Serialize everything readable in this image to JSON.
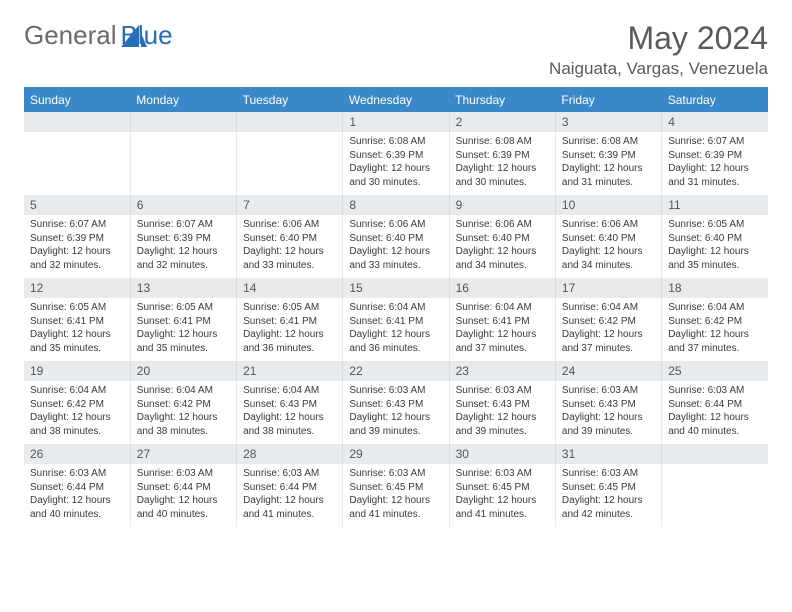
{
  "logo": {
    "part1": "General",
    "part2": "Blue"
  },
  "title": "May 2024",
  "location": "Naiguata, Vargas, Venezuela",
  "colors": {
    "header_bg": "#3a88c9",
    "header_text": "#ffffff",
    "daynum_bg": "#e8ebee",
    "daynum_text": "#555555",
    "body_text": "#3a3a3a",
    "border": "#3a88c9",
    "page_bg": "#ffffff",
    "logo_gray": "#6a6a6a",
    "logo_blue": "#2a6db8"
  },
  "typography": {
    "title_fontsize": 32,
    "location_fontsize": 17,
    "header_fontsize": 12,
    "daynum_fontsize": 12,
    "detail_fontsize": 10
  },
  "weekdays": [
    "Sunday",
    "Monday",
    "Tuesday",
    "Wednesday",
    "Thursday",
    "Friday",
    "Saturday"
  ],
  "weeks": [
    [
      null,
      null,
      null,
      {
        "n": "1",
        "sr": "6:08 AM",
        "ss": "6:39 PM",
        "dl": "12 hours and 30 minutes."
      },
      {
        "n": "2",
        "sr": "6:08 AM",
        "ss": "6:39 PM",
        "dl": "12 hours and 30 minutes."
      },
      {
        "n": "3",
        "sr": "6:08 AM",
        "ss": "6:39 PM",
        "dl": "12 hours and 31 minutes."
      },
      {
        "n": "4",
        "sr": "6:07 AM",
        "ss": "6:39 PM",
        "dl": "12 hours and 31 minutes."
      }
    ],
    [
      {
        "n": "5",
        "sr": "6:07 AM",
        "ss": "6:39 PM",
        "dl": "12 hours and 32 minutes."
      },
      {
        "n": "6",
        "sr": "6:07 AM",
        "ss": "6:39 PM",
        "dl": "12 hours and 32 minutes."
      },
      {
        "n": "7",
        "sr": "6:06 AM",
        "ss": "6:40 PM",
        "dl": "12 hours and 33 minutes."
      },
      {
        "n": "8",
        "sr": "6:06 AM",
        "ss": "6:40 PM",
        "dl": "12 hours and 33 minutes."
      },
      {
        "n": "9",
        "sr": "6:06 AM",
        "ss": "6:40 PM",
        "dl": "12 hours and 34 minutes."
      },
      {
        "n": "10",
        "sr": "6:06 AM",
        "ss": "6:40 PM",
        "dl": "12 hours and 34 minutes."
      },
      {
        "n": "11",
        "sr": "6:05 AM",
        "ss": "6:40 PM",
        "dl": "12 hours and 35 minutes."
      }
    ],
    [
      {
        "n": "12",
        "sr": "6:05 AM",
        "ss": "6:41 PM",
        "dl": "12 hours and 35 minutes."
      },
      {
        "n": "13",
        "sr": "6:05 AM",
        "ss": "6:41 PM",
        "dl": "12 hours and 35 minutes."
      },
      {
        "n": "14",
        "sr": "6:05 AM",
        "ss": "6:41 PM",
        "dl": "12 hours and 36 minutes."
      },
      {
        "n": "15",
        "sr": "6:04 AM",
        "ss": "6:41 PM",
        "dl": "12 hours and 36 minutes."
      },
      {
        "n": "16",
        "sr": "6:04 AM",
        "ss": "6:41 PM",
        "dl": "12 hours and 37 minutes."
      },
      {
        "n": "17",
        "sr": "6:04 AM",
        "ss": "6:42 PM",
        "dl": "12 hours and 37 minutes."
      },
      {
        "n": "18",
        "sr": "6:04 AM",
        "ss": "6:42 PM",
        "dl": "12 hours and 37 minutes."
      }
    ],
    [
      {
        "n": "19",
        "sr": "6:04 AM",
        "ss": "6:42 PM",
        "dl": "12 hours and 38 minutes."
      },
      {
        "n": "20",
        "sr": "6:04 AM",
        "ss": "6:42 PM",
        "dl": "12 hours and 38 minutes."
      },
      {
        "n": "21",
        "sr": "6:04 AM",
        "ss": "6:43 PM",
        "dl": "12 hours and 38 minutes."
      },
      {
        "n": "22",
        "sr": "6:03 AM",
        "ss": "6:43 PM",
        "dl": "12 hours and 39 minutes."
      },
      {
        "n": "23",
        "sr": "6:03 AM",
        "ss": "6:43 PM",
        "dl": "12 hours and 39 minutes."
      },
      {
        "n": "24",
        "sr": "6:03 AM",
        "ss": "6:43 PM",
        "dl": "12 hours and 39 minutes."
      },
      {
        "n": "25",
        "sr": "6:03 AM",
        "ss": "6:44 PM",
        "dl": "12 hours and 40 minutes."
      }
    ],
    [
      {
        "n": "26",
        "sr": "6:03 AM",
        "ss": "6:44 PM",
        "dl": "12 hours and 40 minutes."
      },
      {
        "n": "27",
        "sr": "6:03 AM",
        "ss": "6:44 PM",
        "dl": "12 hours and 40 minutes."
      },
      {
        "n": "28",
        "sr": "6:03 AM",
        "ss": "6:44 PM",
        "dl": "12 hours and 41 minutes."
      },
      {
        "n": "29",
        "sr": "6:03 AM",
        "ss": "6:45 PM",
        "dl": "12 hours and 41 minutes."
      },
      {
        "n": "30",
        "sr": "6:03 AM",
        "ss": "6:45 PM",
        "dl": "12 hours and 41 minutes."
      },
      {
        "n": "31",
        "sr": "6:03 AM",
        "ss": "6:45 PM",
        "dl": "12 hours and 42 minutes."
      },
      null
    ]
  ],
  "labels": {
    "sunrise": "Sunrise:",
    "sunset": "Sunset:",
    "daylight": "Daylight:"
  }
}
